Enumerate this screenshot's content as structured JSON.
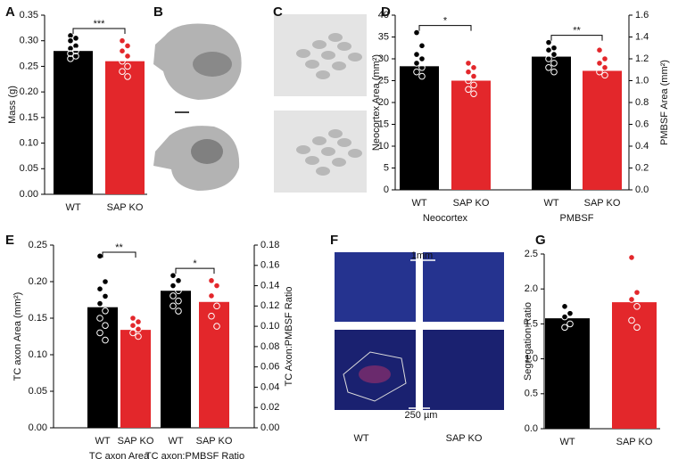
{
  "chart_data": [
    {
      "type": "bar",
      "ylabel": "Mass (g)",
      "categories": [
        "WT",
        "SAP KO"
      ],
      "colors": [
        "#000000",
        "#e3272b"
      ],
      "ylim": [
        0,
        0.35
      ],
      "yticks": [
        {
          "value": 0,
          "label": "0.00"
        },
        0.05,
        {
          "value": 0.1,
          "label": "0.10"
        },
        0.15,
        {
          "value": 0.2,
          "label": "0.20"
        },
        0.25,
        {
          "value": 0.3,
          "label": "0.30"
        },
        0.35
      ],
      "series": [
        {
          "values": [
            0.28,
            0.26
          ],
          "significance": "***",
          "points": [
            [
              0.31,
              0.305,
              0.3,
              0.29,
              0.285,
              0.28,
              0.275,
              0.27,
              0.265
            ],
            [
              0.3,
              0.29,
              0.28,
              0.27,
              0.26,
              0.25,
              0.24,
              0.23
            ]
          ]
        }
      ]
    },
    {
      "type": "bar",
      "ylabel": "Neocortex Area (mm²)",
      "y2label": "PMBSF Area (mm²)",
      "categories": [
        "WT",
        "SAP KO"
      ],
      "colors": [
        "#000000",
        "#e3272b"
      ],
      "ylim": [
        0,
        40
      ],
      "yticks": [
        0,
        5,
        10,
        15,
        20,
        25,
        30,
        35,
        40
      ],
      "y2lim": [
        0,
        1.6
      ],
      "y2ticks": [
        {
          "value": 0,
          "label": "0.0"
        },
        0.2,
        0.4,
        0.6,
        0.8,
        {
          "value": 1,
          "label": "1.0"
        },
        1.2,
        1.4,
        1.6
      ],
      "series": [
        {
          "name": "Neocortex",
          "values": [
            28.3,
            25.0
          ],
          "significance": "*",
          "points": [
            [
              36,
              33,
              31,
              30,
              29,
              28,
              27,
              26
            ],
            [
              29,
              28,
              27,
              26,
              25,
              24,
              23,
              22
            ]
          ]
        },
        {
          "name": "PMBSF",
          "axis": "y2",
          "values": [
            1.22,
            1.09
          ],
          "significance": "**",
          "points": [
            [
              1.35,
              1.3,
              1.28,
              1.24,
              1.2,
              1.16,
              1.12,
              1.08
            ],
            [
              1.28,
              1.2,
              1.16,
              1.12,
              1.08,
              1.05
            ]
          ]
        }
      ]
    },
    {
      "type": "bar",
      "ylabel": "TC axon Area (mm²)",
      "y2label": "TC Axon:PMBSF Ratio",
      "categories": [
        "WT",
        "SAP KO"
      ],
      "colors": [
        "#000000",
        "#e3272b"
      ],
      "ylim": [
        0,
        0.25
      ],
      "yticks": [
        {
          "value": 0,
          "label": "0.00"
        },
        0.05,
        {
          "value": 0.1,
          "label": "0.10"
        },
        0.15,
        {
          "value": 0.2,
          "label": "0.20"
        },
        0.25
      ],
      "y2lim": [
        0,
        0.18
      ],
      "y2ticks": [
        {
          "value": 0,
          "label": "0.00"
        },
        0.02,
        0.04,
        0.06,
        0.08,
        {
          "value": 0.1,
          "label": "0.10"
        },
        0.12,
        0.14,
        0.16,
        0.18
      ],
      "series": [
        {
          "name": "TC axon Area",
          "values": [
            0.165,
            0.134
          ],
          "significance": "**",
          "points": [
            [
              0.235,
              0.2,
              0.19,
              0.18,
              0.17,
              0.16,
              0.15,
              0.14,
              0.13,
              0.12
            ],
            [
              0.15,
              0.145,
              0.14,
              0.135,
              0.13,
              0.125
            ]
          ]
        },
        {
          "name": "TC axon:PMBSF Ratio",
          "axis": "y2",
          "values": [
            0.135,
            0.124
          ],
          "significance": "*",
          "points": [
            [
              0.15,
              0.145,
              0.14,
              0.135,
              0.13,
              0.125,
              0.12,
              0.115
            ],
            [
              0.145,
              0.14,
              0.13,
              0.12,
              0.11,
              0.1
            ]
          ]
        }
      ]
    },
    {
      "type": "bar",
      "ylabel": "Segregation Ratio",
      "categories": [
        "WT",
        "SAP  KO"
      ],
      "colors": [
        "#000000",
        "#e3272b"
      ],
      "ylim": [
        0,
        2.5
      ],
      "yticks": [
        {
          "value": 0,
          "label": "0.0"
        },
        0.5,
        {
          "value": 1,
          "label": "1.0"
        },
        1.5,
        {
          "value": 2,
          "label": "2.0"
        },
        2.5
      ],
      "series": [
        {
          "values": [
            1.58,
            1.81
          ],
          "points": [
            [
              1.75,
              1.65,
              1.6,
              1.5,
              1.45
            ],
            [
              2.45,
              1.95,
              1.85,
              1.75,
              1.55,
              1.45
            ]
          ]
        }
      ]
    }
  ],
  "panel_labels": [
    "A",
    "B",
    "C",
    "D",
    "E",
    "F",
    "G"
  ],
  "panel_f": {
    "scale_bar_top": "1mm",
    "scale_bar_bottom": "250 µm",
    "columns": [
      "WT",
      "SAP KO"
    ]
  }
}
